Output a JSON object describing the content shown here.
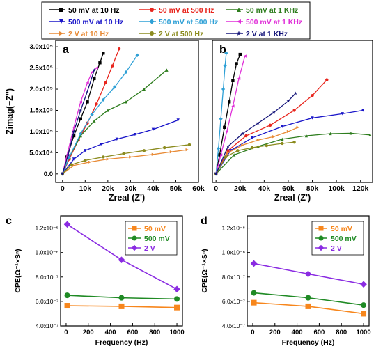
{
  "legend_top": {
    "entries": [
      {
        "label": "50 mV at 10 Hz",
        "color": "#000000",
        "marker": "square"
      },
      {
        "label": "50 mV at 500 Hz",
        "color": "#e8251d",
        "marker": "circle"
      },
      {
        "label": "50 mV at 1 KHz",
        "color": "#2e7d1e",
        "marker": "triangle-up"
      },
      {
        "label": "500 mV at 10 Hz",
        "color": "#1a16c9",
        "marker": "triangle-down"
      },
      {
        "label": "500 mV at 500 Hz",
        "color": "#2ea0d6",
        "marker": "diamond"
      },
      {
        "label": "500 mV at 1 KHz",
        "color": "#e02fd8",
        "marker": "triangle-left"
      },
      {
        "label": "2 V at 10 Hz",
        "color": "#e88a35",
        "marker": "triangle-right"
      },
      {
        "label": "2 V at 500 Hz",
        "color": "#8b8b1e",
        "marker": "hexagon"
      },
      {
        "label": "2 V at 1 KHz",
        "color": "#15157a",
        "marker": "star"
      }
    ]
  },
  "chart_data": [
    {
      "panel": "a",
      "type": "line",
      "xlabel": "Zreal (Z')",
      "ylabel": "Zimag(−Z'')",
      "xlim": [
        -3000,
        60000
      ],
      "ylim": [
        -20000,
        315000
      ],
      "x_ticks": [
        "0",
        "10k",
        "20k",
        "30k",
        "40k",
        "50k",
        "60k"
      ],
      "y_ticks": [
        "0.0",
        "5.0x10⁴",
        "1.0x10⁵",
        "1.5x10⁵",
        "2.0x10⁵",
        "2.5x10⁵",
        "3.0x10⁵"
      ],
      "series": [
        {
          "name": "50 mV at 10 Hz",
          "x": [
            0,
            2000,
            5000,
            8000,
            11000,
            14000,
            16500,
            18000
          ],
          "y": [
            0,
            40000,
            90000,
            130000,
            170000,
            225000,
            262000,
            285000
          ]
        },
        {
          "name": "50 mV at 500 Hz",
          "x": [
            0,
            3000,
            7000,
            11000,
            15000,
            19000,
            22000,
            25000
          ],
          "y": [
            0,
            35000,
            80000,
            120000,
            165000,
            215000,
            255000,
            295000
          ]
        },
        {
          "name": "50 mV at 1 KHz",
          "x": [
            0,
            3000,
            8000,
            14000,
            20000,
            28000,
            36000,
            46000
          ],
          "y": [
            0,
            40000,
            90000,
            125000,
            150000,
            170000,
            200000,
            245000
          ]
        },
        {
          "name": "500 mV at 10 Hz",
          "x": [
            0,
            5000,
            10000,
            17000,
            24000,
            32000,
            40000,
            51000
          ],
          "y": [
            0,
            35000,
            55000,
            70000,
            82000,
            93000,
            105000,
            127000
          ]
        },
        {
          "name": "500 mV at 500 Hz",
          "x": [
            0,
            3000,
            8000,
            13000,
            18000,
            23000,
            28000,
            33000
          ],
          "y": [
            0,
            40000,
            95000,
            140000,
            175000,
            205000,
            240000,
            280000
          ]
        },
        {
          "name": "500 mV at 1 KHz",
          "x": [
            0,
            2000,
            5000,
            8000,
            11000,
            13000,
            15000
          ],
          "y": [
            0,
            45000,
            110000,
            170000,
            215000,
            240000,
            250000
          ]
        },
        {
          "name": "2 V at 10 Hz",
          "x": [
            0,
            5000,
            12000,
            20000,
            30000,
            40000,
            48000,
            55000
          ],
          "y": [
            0,
            20000,
            28000,
            35000,
            40000,
            46000,
            52000,
            57000
          ]
        },
        {
          "name": "2 V at 500 Hz",
          "x": [
            0,
            4000,
            10000,
            18000,
            27000,
            36000,
            45000,
            56000
          ],
          "y": [
            0,
            22000,
            32000,
            40000,
            48000,
            55000,
            62000,
            69000
          ]
        },
        {
          "name": "2 V at 1 KHz",
          "x": [
            0,
            2500,
            5000,
            8000,
            11000,
            14000
          ],
          "y": [
            0,
            45000,
            100000,
            150000,
            195000,
            245000
          ]
        }
      ]
    },
    {
      "panel": "b",
      "type": "line",
      "xlabel": "Zreal (Z')",
      "ylabel": "",
      "xlim": [
        -3000,
        130000
      ],
      "ylim": [
        -20000,
        315000
      ],
      "x_ticks": [
        "0",
        "20k",
        "40k",
        "60k",
        "80k",
        "100k",
        "120k"
      ],
      "series": [
        {
          "name": "50 mV at 10 Hz",
          "x": [
            0,
            3000,
            7000,
            11000,
            14000,
            17000,
            20000
          ],
          "y": [
            0,
            45000,
            110000,
            170000,
            220000,
            260000,
            282000
          ]
        },
        {
          "name": "50 mV at 500 Hz",
          "x": [
            0,
            10000,
            25000,
            45000,
            65000,
            80000,
            92000
          ],
          "y": [
            0,
            55000,
            90000,
            115000,
            150000,
            185000,
            222000
          ]
        },
        {
          "name": "50 mV at 1 KHz",
          "x": [
            0,
            15000,
            35000,
            55000,
            75000,
            95000,
            112000,
            128000
          ],
          "y": [
            0,
            45000,
            65000,
            82000,
            90000,
            95000,
            96000,
            92000
          ]
        },
        {
          "name": "500 mV at 10 Hz",
          "x": [
            0,
            12000,
            30000,
            55000,
            80000,
            105000,
            122000
          ],
          "y": [
            0,
            55000,
            85000,
            112000,
            132000,
            142000,
            150000
          ]
        },
        {
          "name": "500 mV at 500 Hz",
          "x": [
            0,
            2000,
            4000,
            6000,
            7500,
            8500
          ],
          "y": [
            0,
            60000,
            130000,
            200000,
            255000,
            285000
          ]
        },
        {
          "name": "500 mV at 1 KHz",
          "x": [
            0,
            4000,
            9000,
            14000,
            19000,
            24000
          ],
          "y": [
            0,
            45000,
            100000,
            160000,
            225000,
            278000
          ]
        },
        {
          "name": "2 V at 10 Hz",
          "x": [
            0,
            10000,
            22000,
            35000,
            48000,
            60000,
            68000
          ],
          "y": [
            0,
            50000,
            68000,
            80000,
            88000,
            100000,
            110000
          ]
        },
        {
          "name": "2 V at 500 Hz",
          "x": [
            0,
            8000,
            18000,
            30000,
            42000,
            55000,
            65000
          ],
          "y": [
            0,
            40000,
            55000,
            62000,
            67000,
            72000,
            75000
          ]
        },
        {
          "name": "2 V at 1 KHz",
          "x": [
            0,
            10000,
            22000,
            35000,
            48000,
            60000,
            66000
          ],
          "y": [
            0,
            65000,
            95000,
            120000,
            145000,
            172000,
            190000
          ]
        }
      ]
    },
    {
      "panel": "c",
      "type": "line",
      "xlabel": "Frequency (Hz)",
      "ylabel": "CPE(Ω⁻¹×Sⁿ)",
      "xlim": [
        -50,
        1050
      ],
      "ylim": [
        4e-07,
        1.3e-06
      ],
      "x_ticks": [
        "0",
        "200",
        "400",
        "600",
        "800",
        "1000"
      ],
      "y_ticks": [
        "4.0x10⁻⁷",
        "6.0x10⁻⁷",
        "8.0x10⁻⁷",
        "1.0x10⁻⁶",
        "1.2x10⁻⁶"
      ],
      "series": [
        {
          "name": "50 mV",
          "x": [
            10,
            500,
            1000
          ],
          "y": [
            5.65e-07,
            5.6e-07,
            5.5e-07
          ]
        },
        {
          "name": "500 mV",
          "x": [
            10,
            500,
            1000
          ],
          "y": [
            6.5e-07,
            6.3e-07,
            6.2e-07
          ]
        },
        {
          "name": "2 V",
          "x": [
            10,
            500,
            1000
          ],
          "y": [
            1.23e-06,
            9.4e-07,
            7e-07
          ]
        }
      ]
    },
    {
      "panel": "d",
      "type": "line",
      "xlabel": "Frequency (Hz)",
      "ylabel": "CPE(Ω⁻¹×Sⁿ)",
      "xlim": [
        -50,
        1050
      ],
      "ylim": [
        4e-07,
        1.3e-06
      ],
      "x_ticks": [
        "0",
        "200",
        "400",
        "600",
        "800",
        "1000"
      ],
      "y_ticks": [
        "4.0x10⁻⁷",
        "6.0x10⁻⁷",
        "8.0x10⁻⁷",
        "1.0x10⁻⁶",
        "1.2x10⁻⁶"
      ],
      "series": [
        {
          "name": "50 mV",
          "x": [
            10,
            500,
            1000
          ],
          "y": [
            5.9e-07,
            5.6e-07,
            5e-07
          ]
        },
        {
          "name": "500 mV",
          "x": [
            10,
            500,
            1000
          ],
          "y": [
            6.7e-07,
            6.3e-07,
            5.7e-07
          ]
        },
        {
          "name": "2 V",
          "x": [
            10,
            500,
            1000
          ],
          "y": [
            9.1e-07,
            8.25e-07,
            7.4e-07
          ]
        }
      ]
    }
  ],
  "bottom_legend": [
    {
      "label": "50 mV",
      "color": "#f7861c",
      "marker": "square"
    },
    {
      "label": "500 mV",
      "color": "#1f8a24",
      "marker": "circle"
    },
    {
      "label": "2 V",
      "color": "#8a2be2",
      "marker": "diamond"
    }
  ]
}
